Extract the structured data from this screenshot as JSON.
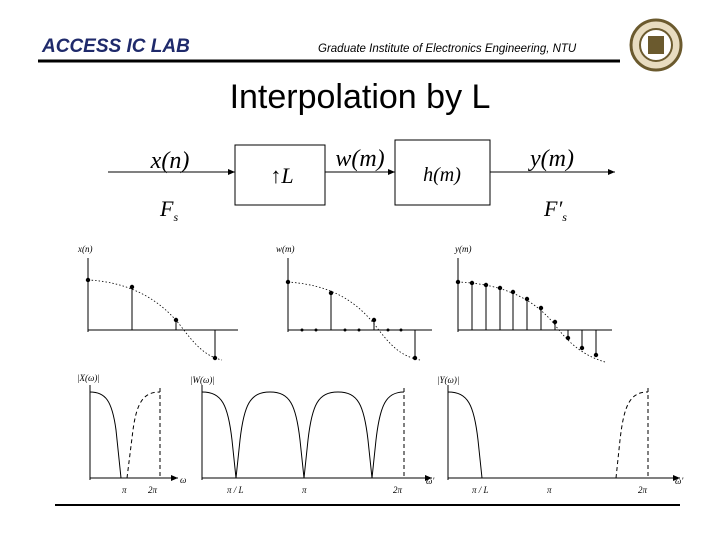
{
  "header": {
    "lab": "ACCESS IC LAB",
    "institute": "Graduate Institute of Electronics Engineering, NTU"
  },
  "title": "Interpolation by L",
  "block_diagram": {
    "input": "x(n)",
    "upsampler": "↑L",
    "intermediate": "w(m)",
    "filter": "h(m)",
    "output": "y(m)",
    "input_rate": {
      "main": "F",
      "sub": "s"
    },
    "output_rate": {
      "main": "F′",
      "sub": "s"
    }
  },
  "time_plots": [
    {
      "label": "x(n)"
    },
    {
      "label": "w(m)"
    },
    {
      "label": "y(m)"
    }
  ],
  "spectrum_plots": [
    {
      "label": "|X(ω)|",
      "ticks": [
        "π",
        "2π"
      ],
      "axis": "ω"
    },
    {
      "label": "|W(ω)|",
      "ticks": [
        "π / L",
        "π",
        "2π"
      ],
      "axis": "ω'"
    },
    {
      "label": "|Y(ω)|",
      "ticks": [
        "π / L",
        "π",
        "2π"
      ],
      "axis": "ω'"
    }
  ]
}
